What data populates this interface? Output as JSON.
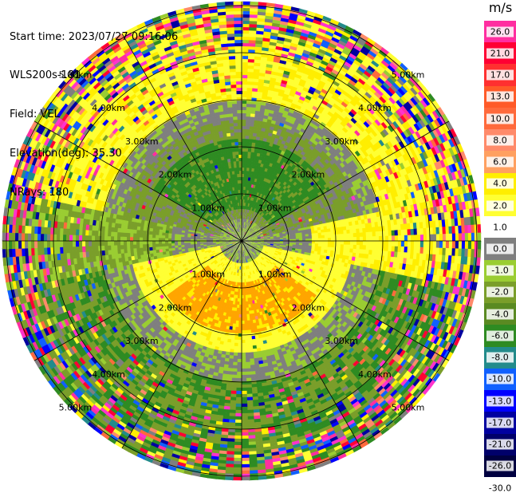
{
  "info": {
    "start_time": "Start time: 2023/07/27 09:16:06",
    "instrument": "WLS200s-181",
    "field": "Field: VEL",
    "elevation": "Elevation(deg): 35.30",
    "nrays": "NRays: 180"
  },
  "rings": {
    "labels": [
      "1.00km",
      "2.00km",
      "3.00km",
      "4.00km",
      "5.00km"
    ],
    "radii_km": [
      1,
      2,
      3,
      4,
      5
    ]
  },
  "colorbar": {
    "unit": "m/s",
    "ticks": [
      "26.0",
      "21.0",
      "17.0",
      "13.0",
      "10.0",
      "8.0",
      "6.0",
      "4.0",
      "2.0",
      "1.0",
      "0.0",
      "-1.0",
      "-2.0",
      "-4.0",
      "-6.0",
      "-8.0",
      "-10.0",
      "-13.0",
      "-17.0",
      "-21.0",
      "-26.0",
      "-30.0"
    ],
    "colors": [
      "#ff2ea0",
      "#ff0033",
      "#ff3030",
      "#ff5a28",
      "#ff6a3c",
      "#ff8a6a",
      "#ffa060",
      "#ffee00",
      "#ffff33",
      "#ffffff",
      "#7f7f7f",
      "#9acd32",
      "#7a9e2a",
      "#5a8a22",
      "#2e8b22",
      "#228b8b",
      "#1060ff",
      "#0000ff",
      "#0000a0",
      "#00006a",
      "#000040"
    ]
  },
  "chart_data": {
    "type": "heatmap",
    "field": "VEL",
    "unit": "m/s",
    "elevation_deg": 35.3,
    "nrays": 180,
    "ring_spacing_km": 1.0,
    "max_range_km": 5.0
  }
}
